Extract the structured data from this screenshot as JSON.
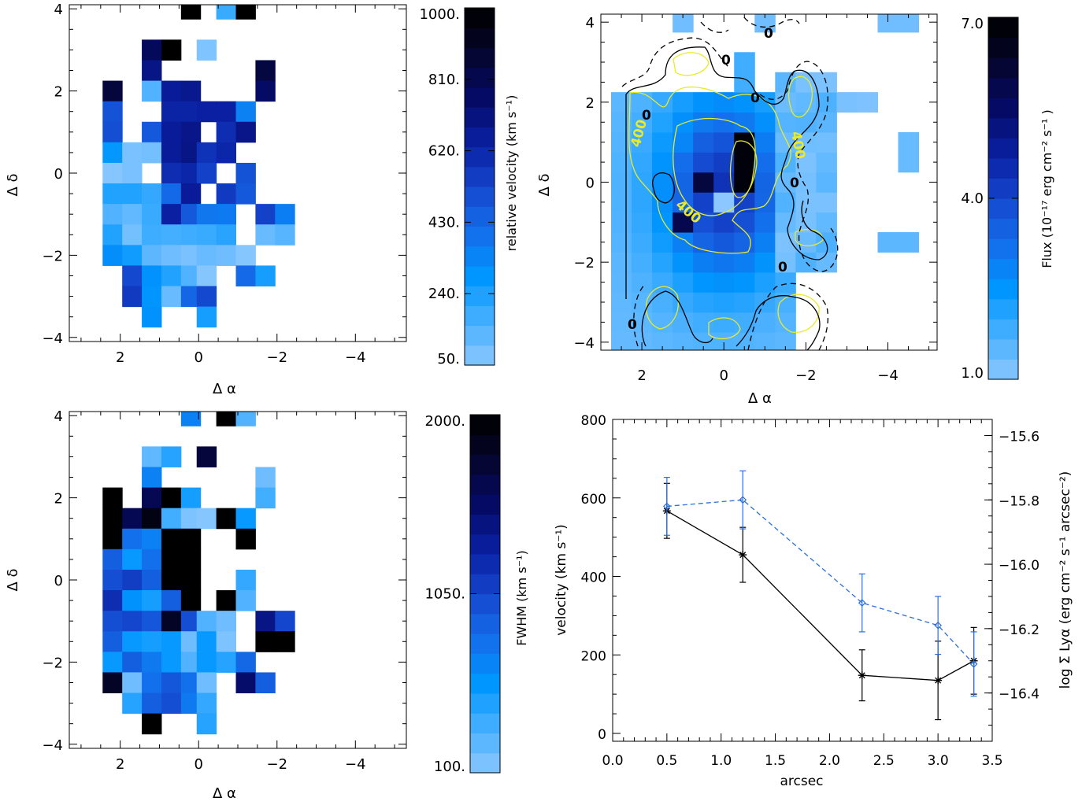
{
  "chart_data": [
    {
      "type": "heatmap",
      "panel": "velocity-map",
      "xlabel": "Δ α",
      "ylabel": "Δ δ",
      "xlim": [
        3.3,
        -5.3
      ],
      "ylim": [
        -4.1,
        4.1
      ],
      "xticks": [
        "2",
        "0",
        "−2",
        "−4"
      ],
      "yticks": [
        "−4",
        "−2",
        "0",
        "2",
        "4"
      ],
      "colorbar": {
        "label": "relative velocity (km s⁻¹)",
        "range": [
          50,
          1000
        ],
        "ticks": [
          "50.",
          "240.",
          "430.",
          "620.",
          "810.",
          "1000."
        ]
      },
      "cells": [
        [
          0.2,
          4,
          1000
        ],
        [
          -0.7,
          4,
          190
        ],
        [
          -1.2,
          4,
          1000
        ],
        [
          1.2,
          3,
          780
        ],
        [
          0.7,
          3,
          1000
        ],
        [
          -0.2,
          3,
          70
        ],
        [
          1.2,
          2.5,
          700
        ],
        [
          -1.7,
          2.5,
          840
        ],
        [
          2.2,
          2,
          850
        ],
        [
          1.2,
          2,
          150
        ],
        [
          0.7,
          2,
          660
        ],
        [
          0.2,
          2,
          680
        ],
        [
          -1.7,
          2,
          760
        ],
        [
          2.2,
          1.5,
          490
        ],
        [
          0.7,
          1.5,
          630
        ],
        [
          0.2,
          1.5,
          630
        ],
        [
          -0.2,
          1.5,
          640
        ],
        [
          -0.7,
          1.5,
          640
        ],
        [
          -1.2,
          1.5,
          350
        ],
        [
          2.2,
          1,
          500
        ],
        [
          1.2,
          1,
          470
        ],
        [
          0.7,
          1,
          660
        ],
        [
          0.2,
          1,
          690
        ],
        [
          -0.7,
          1,
          600
        ],
        [
          -1.2,
          1,
          690
        ],
        [
          2.2,
          0.5,
          280
        ],
        [
          1.7,
          0.5,
          80
        ],
        [
          1.2,
          0.5,
          90
        ],
        [
          0.7,
          0.5,
          660
        ],
        [
          0.2,
          0.5,
          700
        ],
        [
          -0.2,
          0.5,
          580
        ],
        [
          -0.7,
          0.5,
          620
        ],
        [
          2.2,
          0,
          60
        ],
        [
          1.7,
          0,
          80
        ],
        [
          0.7,
          0,
          600
        ],
        [
          0.2,
          0,
          620
        ],
        [
          -0.2,
          0,
          540
        ],
        [
          -1.2,
          0,
          490
        ],
        [
          2.2,
          -0.5,
          230
        ],
        [
          1.7,
          -0.5,
          230
        ],
        [
          1.2,
          -0.5,
          200
        ],
        [
          0.7,
          -0.5,
          420
        ],
        [
          0.2,
          -0.5,
          660
        ],
        [
          -0.7,
          -0.5,
          560
        ],
        [
          -1.2,
          -0.5,
          470
        ],
        [
          2.2,
          -1,
          150
        ],
        [
          1.7,
          -1,
          120
        ],
        [
          1.2,
          -1,
          190
        ],
        [
          0.7,
          -1,
          640
        ],
        [
          0.2,
          -1,
          470
        ],
        [
          -0.2,
          -1,
          380
        ],
        [
          -0.7,
          -1,
          370
        ],
        [
          -1.7,
          -1,
          540
        ],
        [
          -2.2,
          -1,
          360
        ],
        [
          2.2,
          -1.5,
          230
        ],
        [
          1.7,
          -1.5,
          90
        ],
        [
          1.2,
          -1.5,
          180
        ],
        [
          0.7,
          -1.5,
          170
        ],
        [
          0.2,
          -1.5,
          180
        ],
        [
          -0.2,
          -1.5,
          190
        ],
        [
          -0.7,
          -1.5,
          220
        ],
        [
          -1.7,
          -1.5,
          110
        ],
        [
          -2.2,
          -1.5,
          140
        ],
        [
          2.2,
          -2,
          310
        ],
        [
          1.7,
          -2,
          260
        ],
        [
          1.2,
          -2,
          130
        ],
        [
          0.7,
          -2,
          100
        ],
        [
          0.2,
          -2,
          80
        ],
        [
          -0.2,
          -2,
          110
        ],
        [
          -0.7,
          -2,
          100
        ],
        [
          -1.2,
          -2,
          60
        ],
        [
          1.7,
          -2.5,
          520
        ],
        [
          1.2,
          -2.5,
          300
        ],
        [
          0.7,
          -2.5,
          230
        ],
        [
          0.2,
          -2.5,
          150
        ],
        [
          -0.2,
          -2.5,
          60
        ],
        [
          -1.2,
          -2.5,
          420
        ],
        [
          -1.7,
          -2.5,
          250
        ],
        [
          1.7,
          -3,
          560
        ],
        [
          1.2,
          -3,
          290
        ],
        [
          0.7,
          -3,
          110
        ],
        [
          0.2,
          -3,
          430
        ],
        [
          -0.2,
          -3,
          520
        ],
        [
          1.2,
          -3.5,
          300
        ],
        [
          -0.2,
          -3.5,
          250
        ]
      ]
    },
    {
      "type": "heatmap",
      "panel": "flux-map",
      "xlabel": "Δ α",
      "ylabel": "Δ δ",
      "xlim": [
        3.0,
        -5.2
      ],
      "ylim": [
        -4.2,
        4.2
      ],
      "xticks": [
        "2",
        "0",
        "−2",
        "−4"
      ],
      "yticks": [
        "−4",
        "−2",
        "0",
        "2",
        "4"
      ],
      "colorbar": {
        "label": "Flux (10⁻¹⁷ erg cm⁻² s⁻¹ )",
        "range": [
          1.0,
          7.0
        ],
        "ticks": [
          "1.0",
          "4.0",
          "7.0"
        ]
      },
      "contour_labels": [
        "0",
        "0",
        "0",
        "0",
        "0",
        "0",
        "400",
        "400",
        "400"
      ]
    },
    {
      "type": "heatmap",
      "panel": "fwhm-map",
      "xlabel": "Δ α",
      "ylabel": "Δ δ",
      "xlim": [
        3.3,
        -5.3
      ],
      "ylim": [
        -4.1,
        4.1
      ],
      "xticks": [
        "2",
        "0",
        "−2",
        "−4"
      ],
      "yticks": [
        "−4",
        "−2",
        "0",
        "2",
        "4"
      ],
      "colorbar": {
        "label": "FWHM (km s⁻¹)",
        "range": [
          100,
          2000
        ],
        "ticks": [
          "100.",
          "1050.",
          "2000."
        ]
      },
      "cells": [
        [
          0.2,
          4,
          700
        ],
        [
          -0.7,
          4,
          2000
        ],
        [
          -1.2,
          4,
          300
        ],
        [
          1.2,
          3,
          250
        ],
        [
          0.7,
          3,
          450
        ],
        [
          -0.2,
          3,
          1700
        ],
        [
          1.2,
          2.5,
          700
        ],
        [
          -1.7,
          2.5,
          200
        ],
        [
          2.2,
          2,
          2000
        ],
        [
          1.2,
          2,
          1600
        ],
        [
          0.7,
          2,
          2000
        ],
        [
          0.2,
          2,
          500
        ],
        [
          -1.7,
          2,
          350
        ],
        [
          2.2,
          1.5,
          2000
        ],
        [
          1.7,
          1.5,
          1600
        ],
        [
          1.2,
          1.5,
          1900
        ],
        [
          0.7,
          1.5,
          350
        ],
        [
          0.2,
          1.5,
          150
        ],
        [
          -0.2,
          1.5,
          120
        ],
        [
          -0.7,
          1.5,
          2000
        ],
        [
          -1.2,
          1.5,
          550
        ],
        [
          2.2,
          1,
          2000
        ],
        [
          1.7,
          1,
          800
        ],
        [
          1.2,
          1,
          700
        ],
        [
          0.7,
          1,
          2000
        ],
        [
          0.2,
          1,
          2000
        ],
        [
          -1.2,
          1,
          2000
        ],
        [
          2.2,
          0.5,
          900
        ],
        [
          1.7,
          0.5,
          550
        ],
        [
          1.2,
          0.5,
          800
        ],
        [
          0.7,
          0.5,
          2000
        ],
        [
          0.2,
          0.5,
          2000
        ],
        [
          2.2,
          0,
          1000
        ],
        [
          1.7,
          0,
          1100
        ],
        [
          1.2,
          0,
          900
        ],
        [
          0.7,
          0,
          2000
        ],
        [
          0.2,
          0,
          2000
        ],
        [
          -1.2,
          0,
          400
        ],
        [
          2.2,
          -0.5,
          1200
        ],
        [
          1.7,
          -0.5,
          600
        ],
        [
          1.2,
          -0.5,
          500
        ],
        [
          0.7,
          -0.5,
          900
        ],
        [
          0.2,
          -0.5,
          2000
        ],
        [
          -0.7,
          -0.5,
          2000
        ],
        [
          -1.2,
          -0.5,
          300
        ],
        [
          2.2,
          -1,
          1000
        ],
        [
          1.7,
          -1,
          1050
        ],
        [
          1.2,
          -1,
          950
        ],
        [
          0.7,
          -1,
          1800
        ],
        [
          0.2,
          -1,
          1000
        ],
        [
          -0.2,
          -1,
          300
        ],
        [
          -0.7,
          -1,
          200
        ],
        [
          -1.7,
          -1,
          1400
        ],
        [
          -2.2,
          -1,
          1050
        ],
        [
          2.2,
          -1.5,
          900
        ],
        [
          1.7,
          -1.5,
          550
        ],
        [
          1.2,
          -1.5,
          500
        ],
        [
          0.7,
          -1.5,
          550
        ],
        [
          0.2,
          -1.5,
          200
        ],
        [
          -0.2,
          -1.5,
          550
        ],
        [
          -0.7,
          -1.5,
          150
        ],
        [
          -1.7,
          -1.5,
          2000
        ],
        [
          -2.2,
          -1.5,
          2000
        ],
        [
          2.2,
          -2,
          550
        ],
        [
          1.7,
          -2,
          900
        ],
        [
          1.2,
          -2,
          750
        ],
        [
          0.7,
          -2,
          550
        ],
        [
          0.2,
          -2,
          300
        ],
        [
          -0.2,
          -2,
          550
        ],
        [
          -0.7,
          -2,
          450
        ],
        [
          -1.2,
          -2,
          850
        ],
        [
          2.2,
          -2.5,
          1800
        ],
        [
          1.7,
          -2.5,
          200
        ],
        [
          1.2,
          -2.5,
          800
        ],
        [
          0.7,
          -2.5,
          950
        ],
        [
          0.2,
          -2.5,
          800
        ],
        [
          -0.2,
          -2.5,
          200
        ],
        [
          -1.2,
          -2.5,
          1500
        ],
        [
          -1.7,
          -2.5,
          900
        ],
        [
          1.7,
          -3,
          450
        ],
        [
          1.2,
          -3,
          900
        ],
        [
          0.7,
          -3,
          1000
        ],
        [
          0.2,
          -3,
          750
        ],
        [
          -0.2,
          -3,
          400
        ],
        [
          1.2,
          -3.5,
          2000
        ],
        [
          -0.2,
          -3.5,
          450
        ]
      ]
    },
    {
      "type": "line",
      "panel": "velocity-profile",
      "xlabel": "arcsec",
      "ylabel": "velocity (km s⁻¹)",
      "ylabel_right": "log Σ Lyα (erg cm⁻² s⁻¹ arcsec⁻²)",
      "xlim": [
        0.0,
        3.5
      ],
      "ylim": [
        -20,
        800
      ],
      "ylim_right": [
        -16.55,
        -15.55
      ],
      "xticks": [
        "0.0",
        "0.5",
        "1.0",
        "1.5",
        "2.0",
        "2.5",
        "3.0",
        "3.5"
      ],
      "yticks": [
        "0",
        "200",
        "400",
        "600",
        "800"
      ],
      "yticks_right": [
        "−16.4",
        "−16.2",
        "−16.0",
        "−15.8",
        "−15.6"
      ],
      "series": [
        {
          "axis": "left",
          "style": "solid",
          "marker": "asterisk",
          "color": "#000000",
          "x": [
            0.5,
            1.2,
            2.3,
            3.0,
            3.33
          ],
          "y": [
            567,
            455,
            148,
            135,
            185
          ],
          "err": [
            70,
            70,
            65,
            100,
            85
          ]
        },
        {
          "axis": "right",
          "style": "dashed",
          "marker": "diamond",
          "color": "#2a6fd6",
          "x": [
            0.5,
            1.2,
            2.3,
            3.0,
            3.33
          ],
          "y": [
            -15.82,
            -15.8,
            -16.12,
            -16.19,
            -16.31
          ],
          "err": [
            0.09,
            0.09,
            0.09,
            0.09,
            0.1
          ]
        }
      ]
    }
  ]
}
